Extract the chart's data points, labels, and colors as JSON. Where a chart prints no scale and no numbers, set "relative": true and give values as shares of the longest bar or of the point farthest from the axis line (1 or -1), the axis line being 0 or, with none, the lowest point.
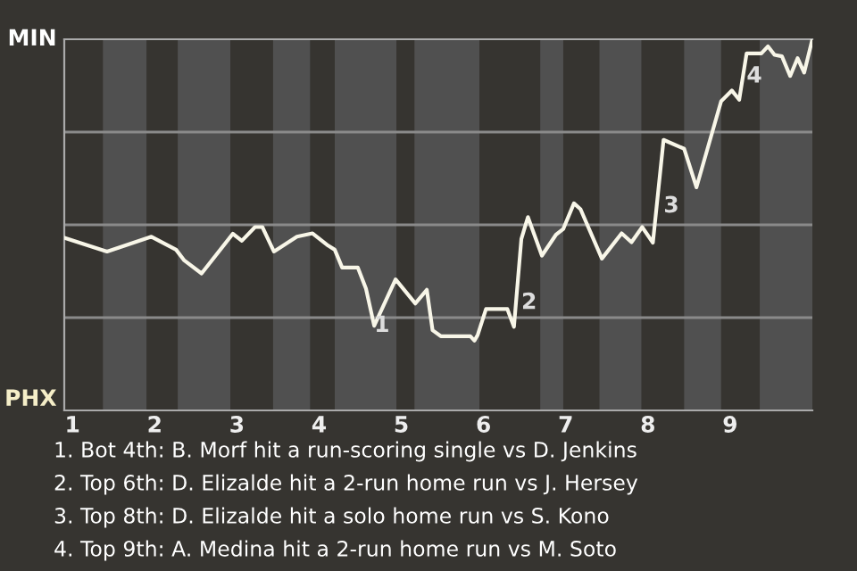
{
  "chart_data": {
    "type": "line",
    "relative": true,
    "x": [
      0.9,
      1.42,
      1.96,
      2.26,
      2.36,
      2.57,
      2.95,
      3.06,
      3.22,
      3.31,
      3.45,
      3.73,
      3.92,
      4.11,
      4.19,
      4.28,
      4.47,
      4.57,
      4.67,
      4.93,
      5.17,
      5.31,
      5.38,
      5.48,
      5.67,
      5.84,
      5.89,
      5.93,
      6.03,
      6.29,
      6.37,
      6.46,
      6.54,
      6.71,
      6.88,
      6.97,
      7.1,
      7.18,
      7.44,
      7.68,
      7.8,
      7.93,
      8.06,
      8.19,
      8.44,
      8.59,
      8.89,
      9.02,
      9.11,
      9.2,
      9.38,
      9.46,
      9.54,
      9.63,
      9.73,
      9.82,
      9.9,
      10.0
    ],
    "series": [
      {
        "color": "#f8f6e8",
        "values": [
          0.465,
          0.428,
          0.468,
          0.433,
          0.404,
          0.369,
          0.476,
          0.457,
          0.494,
          0.494,
          0.428,
          0.468,
          0.477,
          0.444,
          0.433,
          0.385,
          0.385,
          0.328,
          0.228,
          0.353,
          0.288,
          0.325,
          0.216,
          0.2,
          0.2,
          0.2,
          0.188,
          0.204,
          0.273,
          0.273,
          0.225,
          0.462,
          0.521,
          0.417,
          0.473,
          0.489,
          0.558,
          0.542,
          0.409,
          0.477,
          0.453,
          0.494,
          0.452,
          0.729,
          0.705,
          0.601,
          0.833,
          0.862,
          0.837,
          0.962,
          0.962,
          0.981,
          0.958,
          0.954,
          0.901,
          0.949,
          0.91,
          1.0
        ]
      }
    ],
    "xlim": [
      0.9,
      10
    ],
    "xticks": [
      1,
      2,
      3,
      4,
      5,
      6,
      7,
      8,
      9
    ],
    "bands": [
      {
        "axis": "x",
        "from": 1.37,
        "to": 1.9,
        "color": "#505050"
      },
      {
        "axis": "x",
        "from": 2.28,
        "to": 2.92,
        "color": "#505050"
      },
      {
        "axis": "x",
        "from": 3.44,
        "to": 3.89,
        "color": "#505050"
      },
      {
        "axis": "x",
        "from": 4.19,
        "to": 4.94,
        "color": "#505050"
      },
      {
        "axis": "x",
        "from": 5.16,
        "to": 5.95,
        "color": "#505050"
      },
      {
        "axis": "x",
        "from": 6.69,
        "to": 6.97,
        "color": "#505050"
      },
      {
        "axis": "x",
        "from": 7.41,
        "to": 7.92,
        "color": "#505050"
      },
      {
        "axis": "x",
        "from": 8.44,
        "to": 8.89,
        "color": "#505050"
      },
      {
        "axis": "x",
        "from": 9.36,
        "to": 10,
        "color": "#505050"
      }
    ],
    "ref_lines": [
      {
        "axis": "y",
        "value": 0.25,
        "color": "#8a8a8a"
      },
      {
        "axis": "y",
        "value": 0.5,
        "color": "#8a8a8a"
      },
      {
        "axis": "y",
        "value": 0.75,
        "color": "#8a8a8a"
      }
    ],
    "annotations": [
      "MIN",
      "PHX",
      "1. Bot 4th: B. Morf hit a run-scoring single vs D. Jenkins",
      "2. Top 6th: D. Elizalde hit a 2-run home run vs J. Hersey",
      "3. Top 8th: D. Elizalde hit a solo home run vs S. Kono",
      "4. Top 9th: A. Medina hit a 2-run home run vs M. Soto",
      {
        "text": "1",
        "x": 4.67,
        "y": 0.228
      },
      {
        "text": "2",
        "x": 6.46,
        "y": 0.29
      },
      {
        "text": "3",
        "x": 8.19,
        "y": 0.55
      },
      {
        "text": "4",
        "x": 9.2,
        "y": 0.9
      }
    ],
    "grid": false,
    "legend": false
  }
}
